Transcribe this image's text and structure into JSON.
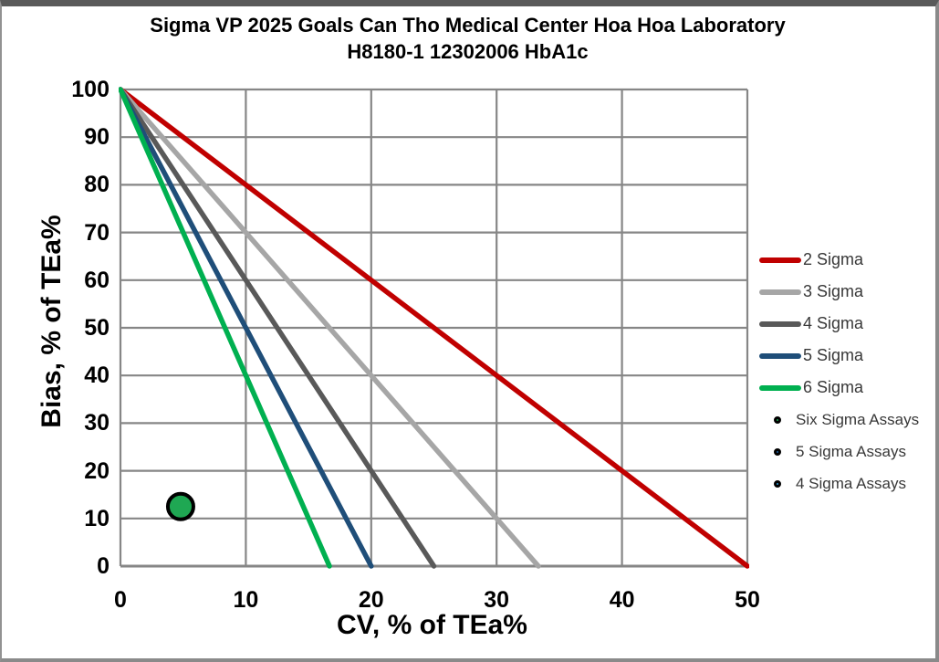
{
  "chart_data": {
    "type": "line",
    "title_line1": "Sigma VP 2025 Goals Can Tho Medical Center Hoa Hoa Laboratory",
    "title_line2": "H8180-1 12302006 HbA1c",
    "xlabel": "CV, % of TEa%",
    "ylabel": "Bias, % of TEa%",
    "xlim": [
      0,
      50
    ],
    "ylim": [
      0,
      100
    ],
    "x_ticks": [
      0,
      10,
      20,
      30,
      40,
      50
    ],
    "y_ticks": [
      0,
      10,
      20,
      30,
      40,
      50,
      60,
      70,
      80,
      90,
      100
    ],
    "grid": true,
    "gridline_color": "#868686",
    "legend_position": "right",
    "series": [
      {
        "name": "2 Sigma",
        "color": "#C00000",
        "points": [
          [
            0,
            100
          ],
          [
            50,
            0
          ]
        ]
      },
      {
        "name": "3 Sigma",
        "color": "#A6A6A6",
        "points": [
          [
            0,
            100
          ],
          [
            33.33,
            0
          ]
        ]
      },
      {
        "name": "4 Sigma",
        "color": "#595959",
        "points": [
          [
            0,
            100
          ],
          [
            25,
            0
          ]
        ]
      },
      {
        "name": "5 Sigma",
        "color": "#1F4E79",
        "points": [
          [
            0,
            100
          ],
          [
            20,
            0
          ]
        ]
      },
      {
        "name": "6 Sigma",
        "color": "#00B050",
        "points": [
          [
            0,
            100
          ],
          [
            16.67,
            0
          ]
        ]
      }
    ],
    "scatter_points": [
      {
        "series": "Six Sigma Assays",
        "x": 4.8,
        "y": 12.5,
        "fill": "#1FA853",
        "stroke": "#000000"
      }
    ],
    "legend_markers": [
      {
        "label": "Six Sigma Assays",
        "fill": "#1FA853"
      },
      {
        "label": "5 Sigma Assays",
        "fill": "#1F64A8"
      },
      {
        "label": "4 Sigma Assays",
        "fill": "#2E9BD6"
      }
    ]
  }
}
